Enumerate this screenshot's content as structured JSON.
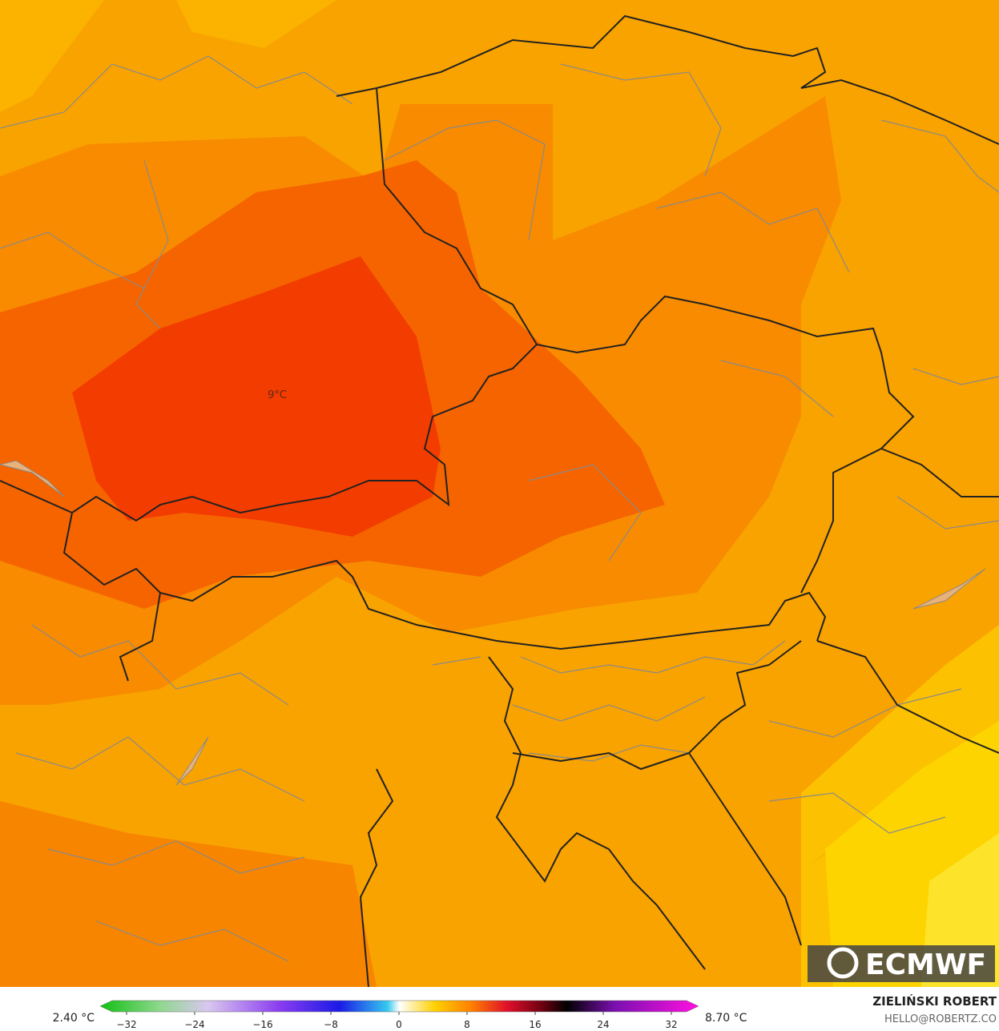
{
  "map": {
    "label": "9°C"
  },
  "legend": {
    "min_label": "2.40 °C",
    "max_label": "8.70 °C",
    "ticks": [
      "−32",
      "−24",
      "−16",
      "−8",
      "0",
      "8",
      "16",
      "24",
      "32"
    ]
  },
  "credits": {
    "author": "ZIELIŃSKI ROBERT",
    "contact": "HELLO@ROBERTZ.CO"
  },
  "logo": "ECMWF"
}
